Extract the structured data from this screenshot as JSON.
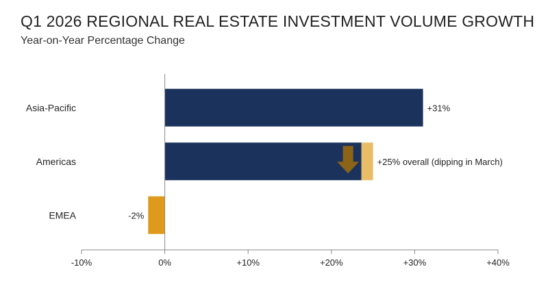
{
  "title": "Q1 2026 REGIONAL REAL ESTATE INVESTMENT VOLUME GROWTH",
  "subtitle": "Year-on-Year Percentage Change",
  "chart_data": {
    "type": "bar",
    "orientation": "horizontal",
    "title": "Q1 2026 REGIONAL REAL ESTATE INVESTMENT VOLUME GROWTH",
    "subtitle": "Year-on-Year Percentage Change",
    "xlabel": "",
    "ylabel": "",
    "xlim": [
      -10,
      40
    ],
    "xticks": [
      -10,
      0,
      10,
      20,
      30,
      40
    ],
    "xtick_labels": [
      "-10%",
      "0%",
      "+10%",
      "+20%",
      "+30%",
      "+40%"
    ],
    "grid": false,
    "legend": "none",
    "categories": [
      "Asia-Pacific",
      "Americas",
      "EMEA"
    ],
    "values": [
      31,
      25,
      -2
    ],
    "data_labels": [
      "+31%",
      "+25% overall (dipping in March)",
      "-2%"
    ],
    "colors": {
      "positive": "#1b335c",
      "negative": "#dd9a1c",
      "dip_segment": "#e9bd68",
      "dip_arrow": "#8c6418",
      "axis": "#8a8a8a"
    },
    "annotations": [
      {
        "category": "Americas",
        "type": "dip-highlight",
        "from": 23.6,
        "to": 25,
        "arrow": "down-arrow-icon",
        "arrow_at": 22
      }
    ]
  }
}
